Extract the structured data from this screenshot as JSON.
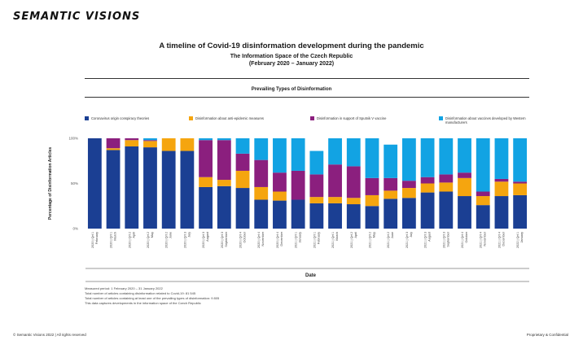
{
  "brand": "SEMANTIC VISIONS",
  "header": {
    "title": "A timeline of Covid-19 disinformation development during the pandemic",
    "subtitle1": "The Information Space of the Czech Republic",
    "subtitle2": "(February 2020 – January 2022)"
  },
  "colors": {
    "c1": "#1b3f93",
    "c2": "#f5a50f",
    "c3": "#8b1f7e",
    "c4": "#12a3e3"
  },
  "chart_data": {
    "type": "bar",
    "stacked": true,
    "title": "Prevailing Types of Disinformation",
    "xlabel": "Date",
    "ylabel": "Percentage of Disinformation Articles",
    "ylim": [
      0,
      100
    ],
    "yticks": [
      "0%",
      "50%",
      "100%"
    ],
    "legend_position": "top",
    "categories": [
      [
        "2020 | Qrt 1",
        "February"
      ],
      [
        "2020 | Qrt 1",
        "March"
      ],
      [
        "2020 | Qrt 2",
        "April"
      ],
      [
        "2020 | Qrt 2",
        "May"
      ],
      [
        "2020 | Qrt 2",
        "June"
      ],
      [
        "2020 | Qrt 3",
        "July"
      ],
      [
        "2020 | Qrt 3",
        "August"
      ],
      [
        "2020 | Qrt 3",
        "September"
      ],
      [
        "2020 | Qrt 4",
        "October"
      ],
      [
        "2020 | Qrt 4",
        "November"
      ],
      [
        "2020 | Qrt 4",
        "December"
      ],
      [
        "2021 | Qrt 1",
        "January"
      ],
      [
        "2021 | Qrt 1",
        "February"
      ],
      [
        "2021 | Qrt 1",
        "March"
      ],
      [
        "2021 | Qrt 2",
        "April"
      ],
      [
        "2021 | Qrt 2",
        "May"
      ],
      [
        "2021 | Qrt 2",
        "June"
      ],
      [
        "2021 | Qrt 3",
        "July"
      ],
      [
        "2021 | Qrt 3",
        "August"
      ],
      [
        "2021 | Qrt 3",
        "September"
      ],
      [
        "2021 | Qrt 4",
        "October"
      ],
      [
        "2021 | Qrt 4",
        "November"
      ],
      [
        "2021 | Qrt 4",
        "December"
      ],
      [
        "2022 | Qrt 1",
        "January"
      ]
    ],
    "series": [
      {
        "name": "Coronavirus origin conspiracy theories",
        "color": "#1b3f93",
        "values": [
          100,
          87,
          91,
          90,
          86,
          86,
          46,
          47,
          45,
          32,
          31,
          32,
          28,
          28,
          27,
          25,
          33,
          34,
          40,
          41,
          36,
          26,
          36,
          37
        ]
      },
      {
        "name": "Disinformation about anti-epidemic measures",
        "color": "#f5a50f",
        "values": [
          0,
          2,
          7,
          7,
          14,
          14,
          11,
          7,
          19,
          14,
          10,
          0,
          7,
          7,
          7,
          12,
          9,
          11,
          10,
          10,
          20,
          10,
          16,
          13
        ]
      },
      {
        "name": "Disinformation in support of Sputnik V vaccine",
        "color": "#8b1f7e",
        "values": [
          0,
          11,
          2,
          1,
          0,
          0,
          41,
          44,
          19,
          30,
          21,
          32,
          25,
          36,
          35,
          19,
          14,
          8,
          7,
          9,
          6,
          5,
          3,
          2
        ]
      },
      {
        "name": "Disinformation about vaccines developed by Western manufacturers",
        "color": "#12a3e3",
        "values": [
          0,
          0,
          0,
          2,
          0,
          0,
          2,
          2,
          17,
          24,
          38,
          36,
          26,
          29,
          31,
          44,
          37,
          47,
          43,
          40,
          38,
          59,
          45,
          48
        ]
      }
    ]
  },
  "notes": [
    "Measured period: 1 February 2020 – 31 January 2022",
    "Total number of articles containing disinformation related to Covid-19: 81 545",
    "Total number of articles containing at least one of the prevailing types of disinformation: 9 805",
    "This data captures developments in the information space of the Czech Republic"
  ],
  "footer": {
    "left": "© Semantic Visions 2022 | All rights reserved",
    "right": "Proprietary & Confidential"
  }
}
